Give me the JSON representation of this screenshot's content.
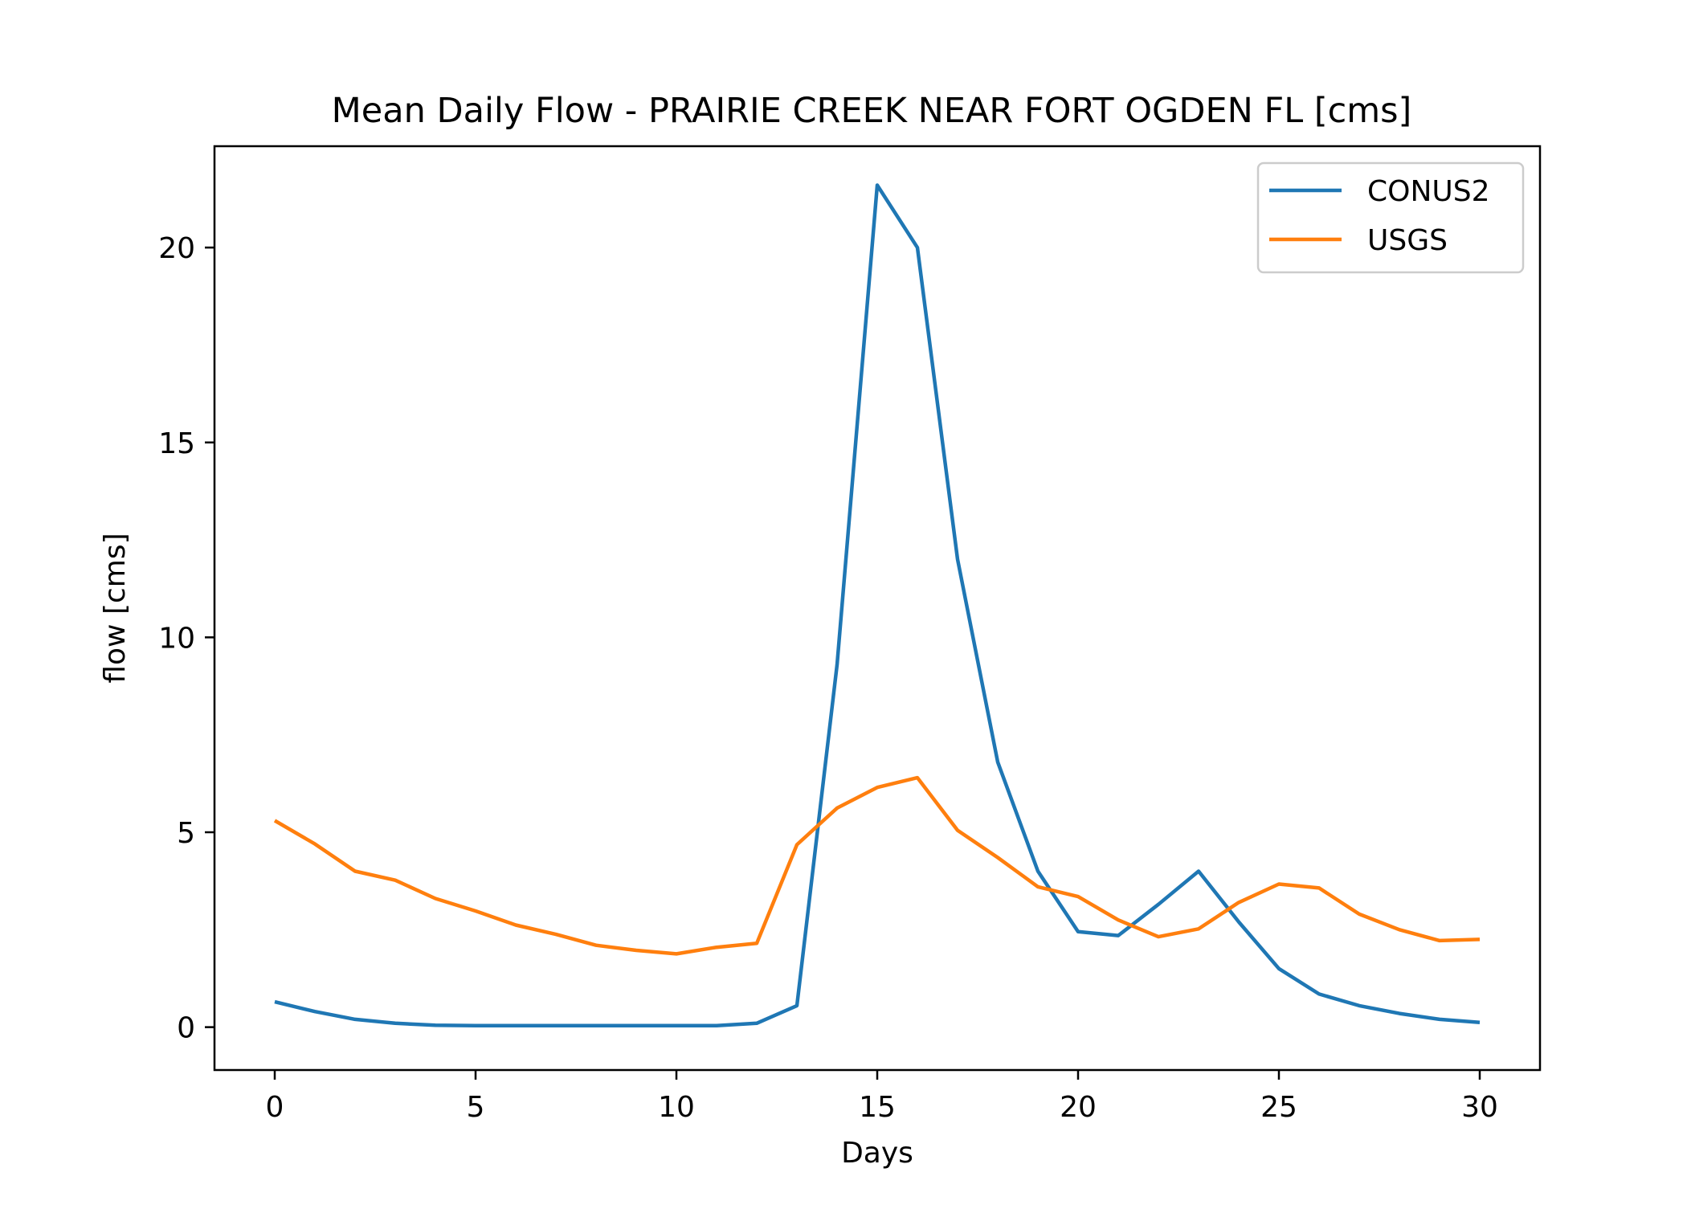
{
  "chart_data": {
    "type": "line",
    "title": "Mean Daily Flow - PRAIRIE CREEK NEAR FORT OGDEN FL [cms]",
    "xlabel": "Days",
    "ylabel": "flow [cms]",
    "xlim": [
      -1.5,
      31.5
    ],
    "ylim": [
      -1.1,
      22.6
    ],
    "xticks": [
      0,
      5,
      10,
      15,
      20,
      25,
      30
    ],
    "yticks": [
      0,
      5,
      10,
      15,
      20
    ],
    "grid": false,
    "legend_position": "upper right",
    "x": [
      0,
      1,
      2,
      3,
      4,
      5,
      6,
      7,
      8,
      9,
      10,
      11,
      12,
      13,
      14,
      15,
      16,
      17,
      18,
      19,
      20,
      21,
      22,
      23,
      24,
      25,
      26,
      27,
      28,
      29,
      30
    ],
    "series": [
      {
        "name": "CONUS2",
        "color": "#1f77b4",
        "values": [
          0.65,
          0.4,
          0.2,
          0.1,
          0.05,
          0.04,
          0.04,
          0.04,
          0.04,
          0.04,
          0.04,
          0.04,
          0.1,
          0.55,
          9.3,
          21.6,
          20.0,
          12.0,
          6.8,
          4.0,
          2.45,
          2.35,
          3.15,
          4.0,
          2.7,
          1.5,
          0.85,
          0.55,
          0.35,
          0.2,
          0.12
        ]
      },
      {
        "name": "USGS",
        "color": "#ff7f0e",
        "values": [
          5.3,
          4.7,
          4.0,
          3.77,
          3.3,
          2.98,
          2.62,
          2.38,
          2.1,
          1.97,
          1.88,
          2.05,
          2.15,
          4.68,
          5.62,
          6.15,
          6.4,
          5.05,
          4.35,
          3.6,
          3.35,
          2.75,
          2.32,
          2.52,
          3.2,
          3.67,
          3.57,
          2.9,
          2.5,
          2.22,
          2.25
        ]
      }
    ]
  }
}
